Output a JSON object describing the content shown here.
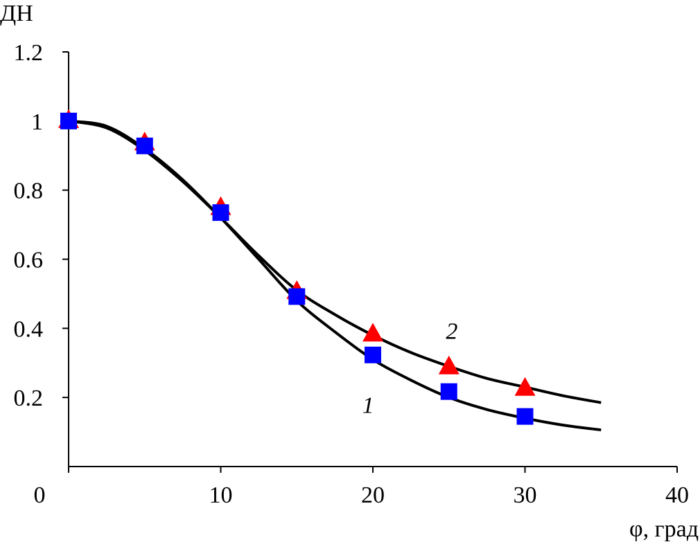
{
  "chart_data": {
    "type": "scatter",
    "title": "",
    "xlabel": "φ, град",
    "ylabel": "ДН",
    "xlim": [
      0,
      40
    ],
    "ylim": [
      0,
      1.2
    ],
    "x_ticks": [
      "0",
      "10",
      "20",
      "30",
      "40"
    ],
    "y_ticks": [
      "0.2",
      "0.4",
      "0.6",
      "0.8",
      "1",
      "1.2"
    ],
    "grid": false,
    "markers": [
      {
        "shape": "square",
        "color": "#0000ff",
        "x": [
          0,
          5,
          10,
          15,
          20,
          25,
          30
        ],
        "y": [
          1.0,
          0.928,
          0.735,
          0.492,
          0.323,
          0.217,
          0.145
        ]
      },
      {
        "shape": "triangle",
        "color": "#ff0000",
        "x": [
          0,
          5,
          10,
          15,
          20,
          25,
          30
        ],
        "y": [
          1.0,
          0.935,
          0.748,
          0.505,
          0.382,
          0.287,
          0.225
        ]
      }
    ],
    "curves": [
      {
        "label": "1",
        "color": "#000000",
        "x": [
          0,
          2.5,
          5,
          7.5,
          10,
          12.5,
          15,
          17.5,
          20,
          22.5,
          25,
          27.5,
          30,
          32.5,
          35
        ],
        "y": [
          1.0,
          0.985,
          0.92,
          0.83,
          0.72,
          0.6,
          0.48,
          0.39,
          0.31,
          0.25,
          0.2,
          0.165,
          0.14,
          0.12,
          0.106
        ]
      },
      {
        "label": "2",
        "color": "#000000",
        "x": [
          0,
          2.5,
          5,
          7.5,
          10,
          12.5,
          15,
          17.5,
          20,
          22.5,
          25,
          27.5,
          30,
          32.5,
          35
        ],
        "y": [
          1.0,
          0.98,
          0.915,
          0.825,
          0.72,
          0.61,
          0.51,
          0.44,
          0.38,
          0.33,
          0.29,
          0.255,
          0.23,
          0.205,
          0.185
        ]
      }
    ],
    "curve_label_positions": [
      {
        "label": "1",
        "x": 19.3,
        "y": 0.155
      },
      {
        "label": "2",
        "x": 24.8,
        "y": 0.37
      }
    ]
  }
}
